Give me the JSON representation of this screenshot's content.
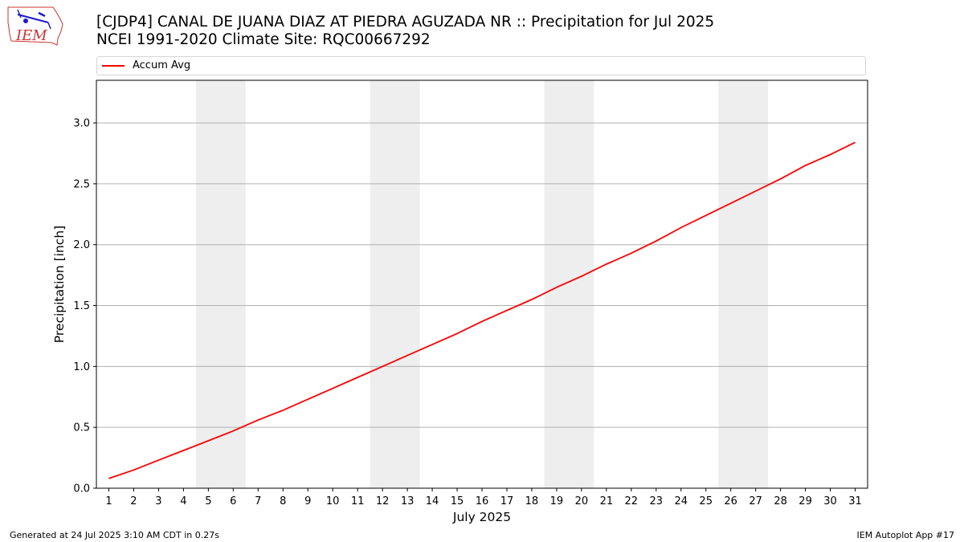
{
  "header": {
    "title_line1": "[CJDP4] CANAL DE JUANA DIAZ AT PIEDRA AGUZADA NR :: Precipitation for Jul 2025",
    "title_line2": "NCEI 1991-2020 Climate Site: RQC00667292"
  },
  "logo": {
    "text": "IEM",
    "color": "#cc3333",
    "icon": "iowa-iem-logo"
  },
  "footer": {
    "generated": "Generated at 24 Jul 2025 3:10 AM CDT in 0.27s",
    "app": "IEM Autoplot App #17"
  },
  "chart_data": {
    "type": "line",
    "title": "[CJDP4] CANAL DE JUANA DIAZ AT PIEDRA AGUZADA NR :: Precipitation for Jul 2025",
    "subtitle": "NCEI 1991-2020 Climate Site: RQC00667292",
    "xlabel": "July 2025",
    "ylabel": "Precipitation [inch]",
    "x": [
      1,
      2,
      3,
      4,
      5,
      6,
      7,
      8,
      9,
      10,
      11,
      12,
      13,
      14,
      15,
      16,
      17,
      18,
      19,
      20,
      21,
      22,
      23,
      24,
      25,
      26,
      27,
      28,
      29,
      30,
      31
    ],
    "xlim": [
      0.5,
      31.5
    ],
    "ylim": [
      0,
      3.35
    ],
    "yticks": [
      "0.0",
      "0.5",
      "1.0",
      "1.5",
      "2.0",
      "2.5",
      "3.0"
    ],
    "ytick_values": [
      0,
      0.5,
      1.0,
      1.5,
      2.0,
      2.5,
      3.0
    ],
    "grid": "horizontal",
    "legend_position": "top",
    "weekend_shading": [
      [
        5,
        6
      ],
      [
        12,
        13
      ],
      [
        19,
        20
      ],
      [
        26,
        27
      ]
    ],
    "shade_color": "#eeeeee",
    "series": [
      {
        "name": "Accum Avg",
        "color": "#ff0000",
        "values": [
          0.08,
          0.15,
          0.23,
          0.31,
          0.39,
          0.47,
          0.56,
          0.64,
          0.73,
          0.82,
          0.91,
          1.0,
          1.09,
          1.18,
          1.27,
          1.37,
          1.46,
          1.55,
          1.65,
          1.74,
          1.84,
          1.93,
          2.03,
          2.14,
          2.24,
          2.34,
          2.44,
          2.54,
          2.65,
          2.74,
          2.84
        ]
      }
    ]
  }
}
